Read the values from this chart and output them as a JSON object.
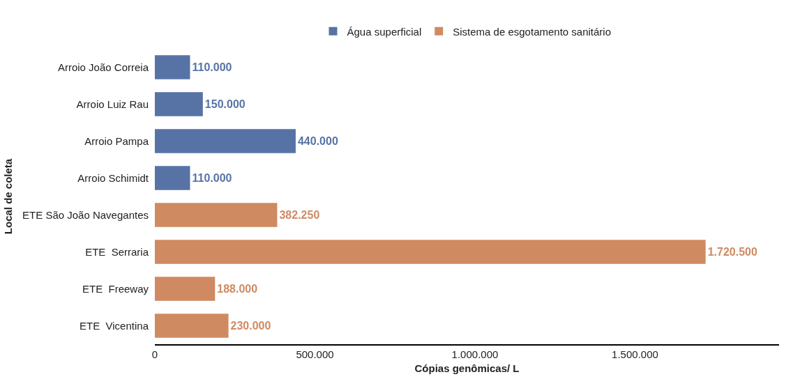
{
  "chart_data": {
    "type": "bar",
    "orientation": "horizontal",
    "xlabel": "Cópias genômicas/ L",
    "ylabel": "Local de coleta",
    "categories": [
      "Arroio João Correia",
      "Arroio Luiz Rau",
      "Arroio Pampa",
      "Arroio Schimidt",
      "ETE São João Navegantes",
      "ETE  Serraria",
      "ETE  Freeway",
      "ETE  Vicentina"
    ],
    "series": [
      {
        "name": "Água superficial",
        "color": "#5773a6",
        "values": [
          110000,
          150000,
          440000,
          110000,
          null,
          null,
          null,
          null
        ],
        "value_labels": [
          "110.000",
          "150.000",
          "440.000",
          "110.000",
          null,
          null,
          null,
          null
        ]
      },
      {
        "name": "Sistema de esgotamento sanitário",
        "color": "#cf8a62",
        "values": [
          null,
          null,
          null,
          null,
          382250,
          1720500,
          188000,
          230000
        ],
        "value_labels": [
          null,
          null,
          null,
          null,
          "382.250",
          "1.720.500",
          "188.000",
          "230.000"
        ]
      }
    ],
    "xlim": [
      0,
      1950000
    ],
    "xticks": [
      0,
      {
        "value": 500000,
        "label": "500.000"
      },
      {
        "value": 1000000,
        "label": "1.000.000"
      },
      {
        "value": 1500000,
        "label": "1.500.000"
      }
    ],
    "grid": false,
    "legend": "top"
  }
}
